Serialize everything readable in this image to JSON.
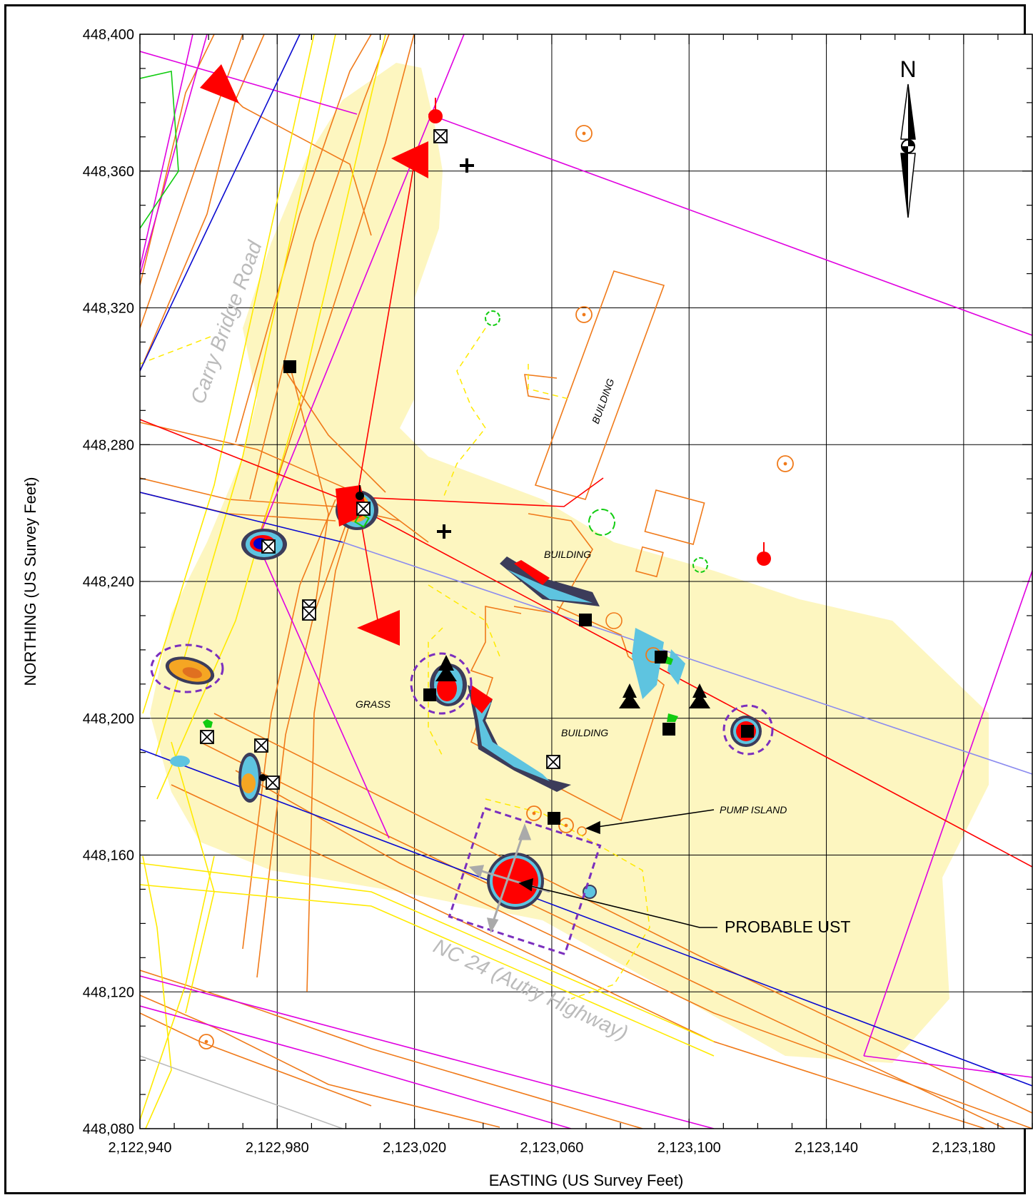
{
  "map": {
    "x_axis_label": "EASTING (US Survey Feet)",
    "y_axis_label": "NORTHING (US Survey Feet)",
    "x_ticks": [
      "2,122,940",
      "2,122,980",
      "2,123,020",
      "2,123,060",
      "2,123,100",
      "2,123,140",
      "2,123,180"
    ],
    "y_ticks": [
      "448,400",
      "448,360",
      "448,320",
      "448,280",
      "448,240",
      "448,200",
      "448,160",
      "448,120",
      "448,080"
    ],
    "north_label": "N",
    "road_north": "Carry Bridge Road",
    "road_south": "NC 24 (Autry Highway)",
    "labels": {
      "building_1": "BUILDING",
      "building_2": "BUILDING",
      "building_3": "BUILDING",
      "grass": "GRASS",
      "pump_island": "PUMP ISLAND",
      "probable_ust": "PROBABLE UST"
    },
    "colors": {
      "road_lines": "#f07a1a",
      "utility_yellow": "#ffea00",
      "property_magenta": "#e000e0",
      "survey_blue": "#0a0ad0",
      "anomaly_red": "#ff0000",
      "survey_area": "#fdf6c0",
      "target_outline": "#7b2fbe"
    }
  },
  "chart_data": {
    "type": "map",
    "xlabel": "EASTING (US Survey Feet)",
    "ylabel": "NORTHING (US Survey Feet)",
    "xlim": [
      2122940,
      2123200
    ],
    "ylim": [
      448080,
      448400
    ],
    "grid": true,
    "annotations": [
      "BUILDING",
      "BUILDING",
      "BUILDING",
      "GRASS",
      "PUMP ISLAND",
      "PROBABLE UST",
      "Carry Bridge Road",
      "NC 24 (Autry Highway)"
    ]
  }
}
